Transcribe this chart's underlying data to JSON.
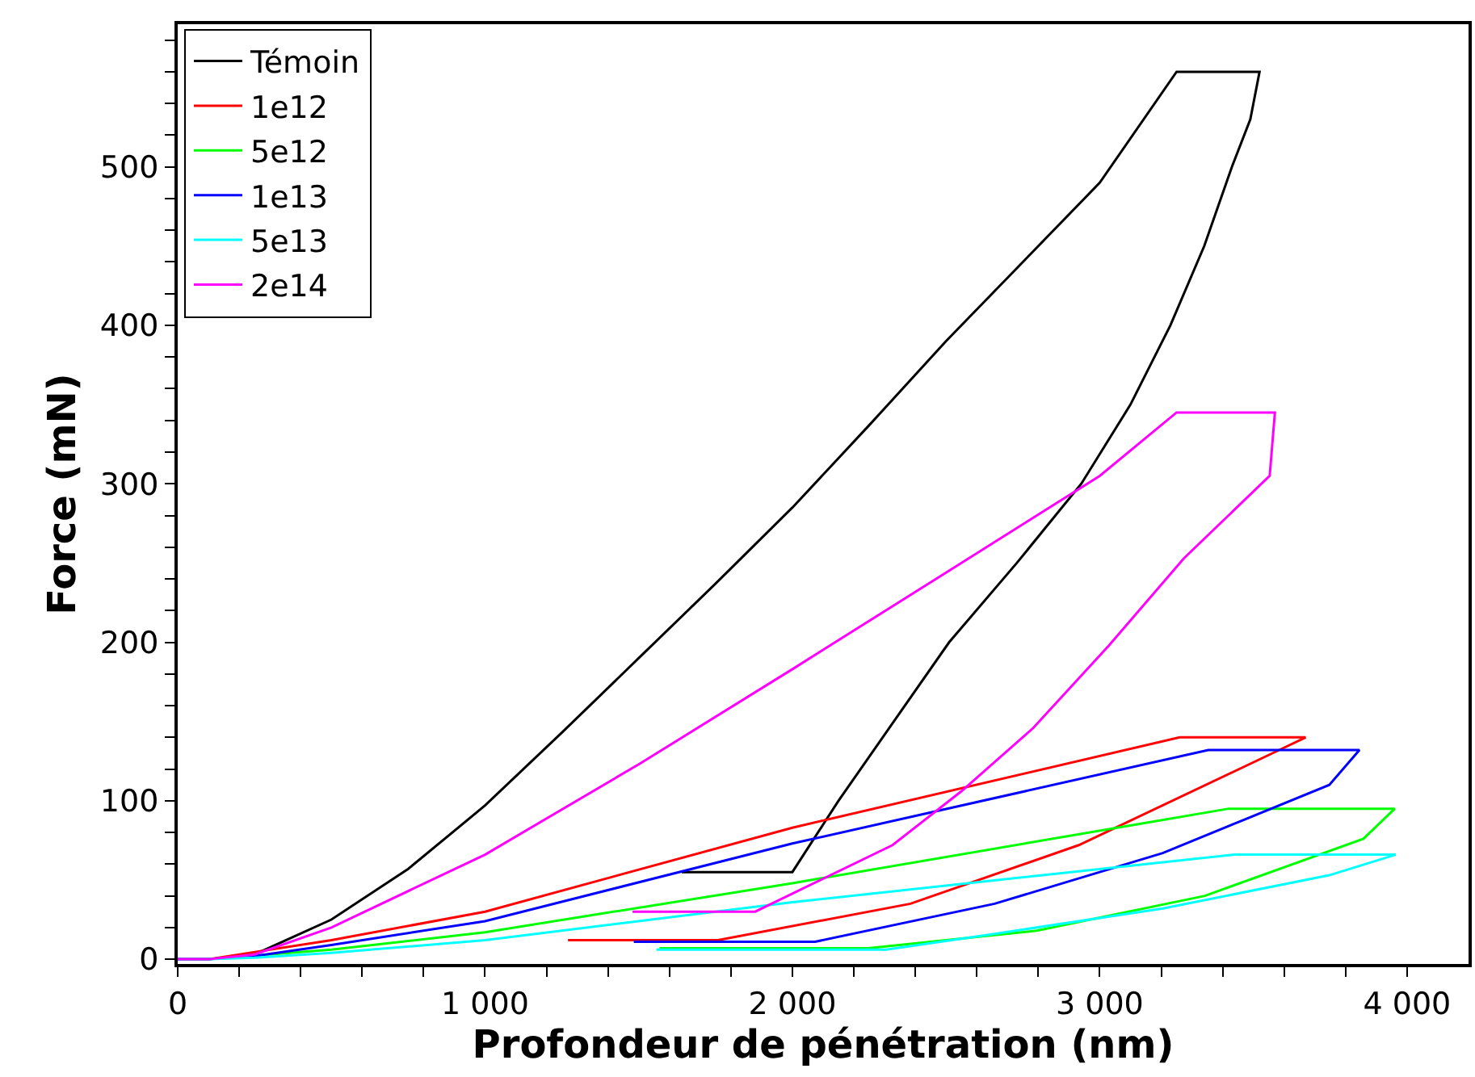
{
  "chart_data": {
    "type": "line",
    "xlabel": "Profondeur de pénétration (nm)",
    "ylabel": "Force (mN)",
    "xlim": [
      0,
      4200
    ],
    "ylim": [
      -3,
      590
    ],
    "xticks": [
      {
        "value": 0,
        "label": "0"
      },
      {
        "value": 200,
        "label": null
      },
      {
        "value": 400,
        "label": null
      },
      {
        "value": 600,
        "label": null
      },
      {
        "value": 800,
        "label": null
      },
      {
        "value": 1000,
        "label": "1 000"
      },
      {
        "value": 1200,
        "label": null
      },
      {
        "value": 1400,
        "label": null
      },
      {
        "value": 1600,
        "label": null
      },
      {
        "value": 1800,
        "label": null
      },
      {
        "value": 2000,
        "label": "2 000"
      },
      {
        "value": 2200,
        "label": null
      },
      {
        "value": 2400,
        "label": null
      },
      {
        "value": 2600,
        "label": null
      },
      {
        "value": 2800,
        "label": null
      },
      {
        "value": 3000,
        "label": "3 000"
      },
      {
        "value": 3200,
        "label": null
      },
      {
        "value": 3400,
        "label": null
      },
      {
        "value": 3600,
        "label": null
      },
      {
        "value": 3800,
        "label": null
      },
      {
        "value": 4000,
        "label": "4 000"
      }
    ],
    "yticks": [
      0,
      {
        "value": 20,
        "label": null
      },
      {
        "value": 40,
        "label": null
      },
      {
        "value": 60,
        "label": null
      },
      {
        "value": 80,
        "label": null
      },
      100,
      {
        "value": 120,
        "label": null
      },
      {
        "value": 140,
        "label": null
      },
      {
        "value": 160,
        "label": null
      },
      {
        "value": 180,
        "label": null
      },
      200,
      {
        "value": 220,
        "label": null
      },
      {
        "value": 240,
        "label": null
      },
      {
        "value": 260,
        "label": null
      },
      {
        "value": 280,
        "label": null
      },
      300,
      {
        "value": 320,
        "label": null
      },
      {
        "value": 340,
        "label": null
      },
      {
        "value": 360,
        "label": null
      },
      {
        "value": 380,
        "label": null
      },
      400,
      {
        "value": 420,
        "label": null
      },
      {
        "value": 440,
        "label": null
      },
      {
        "value": 460,
        "label": null
      },
      {
        "value": 480,
        "label": null
      },
      500,
      {
        "value": 520,
        "label": null
      },
      {
        "value": 540,
        "label": null
      },
      {
        "value": 560,
        "label": null
      },
      {
        "value": 580,
        "label": null
      }
    ],
    "grid": false,
    "legend": "top left",
    "marker": "none",
    "line_style": "solid",
    "series": [
      {
        "name": "Témoin",
        "color": "#000000",
        "x": [
          0,
          100,
          250,
          500,
          750,
          1000,
          1250,
          1500,
          1750,
          2000,
          2250,
          2500,
          2750,
          3000,
          3250,
          3520,
          3490,
          3430,
          3340,
          3230,
          3100,
          2940,
          2730,
          2510,
          2330,
          2150,
          2000,
          1640
        ],
        "values": [
          0,
          0,
          3,
          25,
          57,
          97,
          143,
          190,
          237,
          285,
          337,
          390,
          440,
          490,
          560,
          560,
          530,
          500,
          450,
          400,
          350,
          300,
          250,
          200,
          150,
          100,
          55,
          55
        ]
      },
      {
        "name": "1e12",
        "color": "#ff0000",
        "x": [
          0,
          100,
          500,
          1000,
          2000,
          3260,
          3670,
          3584,
          2932,
          2384,
          1758,
          1270
        ],
        "values": [
          0,
          0,
          12,
          30,
          83,
          140,
          140,
          132,
          72,
          35,
          12,
          12
        ]
      },
      {
        "name": "5e12",
        "color": "#00ff00",
        "x": [
          0,
          100,
          500,
          1000,
          2000,
          3420,
          3960,
          3858,
          3342,
          2795,
          2247,
          1568
        ],
        "values": [
          0,
          0,
          6,
          17,
          48,
          95,
          95,
          76,
          40,
          18,
          7,
          7
        ]
      },
      {
        "name": "1e13",
        "color": "#0000ff",
        "x": [
          0,
          100,
          250,
          500,
          1000,
          2000,
          3353,
          3845,
          3747,
          3205,
          2658,
          2074,
          1484
        ],
        "values": [
          0,
          0,
          2,
          9,
          24,
          73,
          132,
          132,
          110,
          67,
          35,
          11,
          11
        ]
      },
      {
        "name": "5e13",
        "color": "#00ffff",
        "x": [
          0,
          100,
          250,
          500,
          1000,
          2000,
          3437,
          3963,
          3747,
          3205,
          2658,
          2305,
          1558
        ],
        "values": [
          0,
          0,
          1,
          4,
          12,
          36,
          66,
          66,
          53,
          32,
          16,
          6,
          6
        ]
      },
      {
        "name": "2e14",
        "color": "#ff00ff",
        "x": [
          0,
          100,
          250,
          500,
          1000,
          1500,
          2000,
          2500,
          3000,
          3250,
          3570,
          3553,
          3274,
          3030,
          2784,
          2550,
          2326,
          1879,
          1480
        ],
        "values": [
          0,
          0,
          3,
          20,
          66,
          123,
          183,
          244,
          305,
          345,
          345,
          305,
          253,
          198,
          146,
          106,
          72,
          30,
          30
        ]
      }
    ]
  }
}
